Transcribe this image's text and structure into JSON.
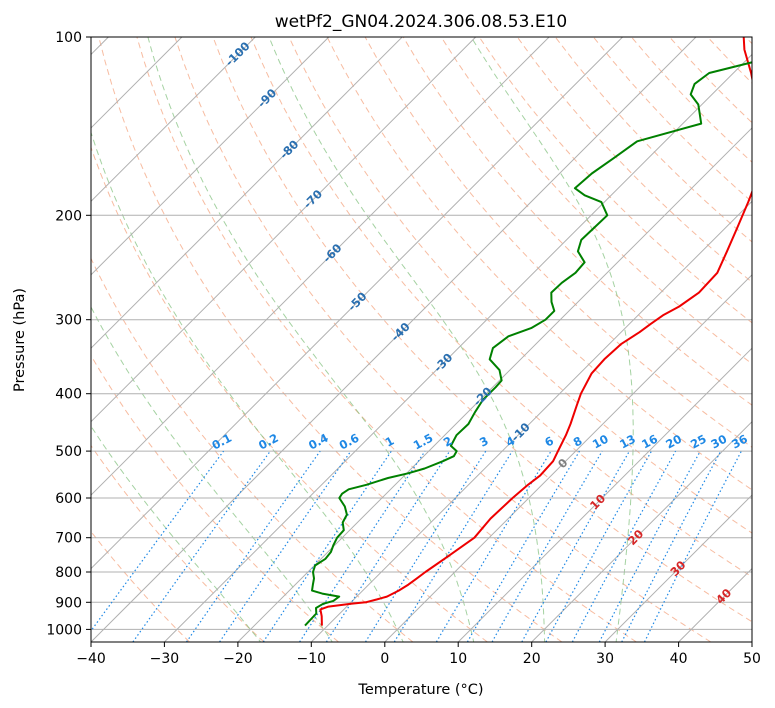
{
  "chart_data": {
    "type": "line",
    "subtype": "skew-t log-p diagram",
    "title": "wetPf2_GN04.2024.306.08.53.E10",
    "xlabel": "Temperature (°C)",
    "ylabel": "Pressure (hPa)",
    "xlim": [
      -40,
      50
    ],
    "ylim": [
      1050,
      100
    ],
    "y_scale": "log",
    "grid": true,
    "x_ticks": [
      -40,
      -30,
      -20,
      -10,
      0,
      10,
      20,
      30,
      40,
      50
    ],
    "y_ticks": [
      1000,
      900,
      800,
      700,
      600,
      500,
      400,
      300,
      200,
      100
    ],
    "isotherm_labels": [
      "-100",
      "-90",
      "-80",
      "-70",
      "-60",
      "-50",
      "-40",
      "-30",
      "-20",
      "-10",
      "0",
      "10",
      "20",
      "30",
      "40"
    ],
    "mixing_ratio_labels": [
      "0.1",
      "0.2",
      "0.4",
      "0.6",
      "1",
      "1.5",
      "2",
      "3",
      "4",
      "6",
      "8",
      "10",
      "13",
      "16",
      "20",
      "25",
      "30",
      "36"
    ],
    "colors": {
      "temperature": "#ee0000",
      "dewpoint": "#008000",
      "isotherm_label_cold": "#2a6fb0",
      "isotherm_label_warm": "#d62728",
      "isotherm_label_zero": "#808080",
      "mixing_ratio": "#1e88e5",
      "dry_adiabat": "#f4a582",
      "moist_adiabat": "#7fbf7b",
      "grid": "#b0b0b0"
    },
    "series": [
      {
        "p": [
          985,
          950,
          925,
          915,
          905,
          900,
          890,
          880,
          860,
          840,
          820,
          800,
          780,
          750,
          700,
          650,
          600,
          570,
          550,
          520,
          500,
          470,
          450,
          420,
          400,
          370,
          350,
          330,
          315,
          305,
          295,
          285,
          270,
          250,
          230,
          210,
          190,
          170,
          150,
          135,
          125,
          115,
          105,
          100
        ],
        "t": [
          -10.8,
          -12.1,
          -13.2,
          -12.5,
          -9.8,
          -8.0,
          -6.9,
          -5.9,
          -5.1,
          -4.6,
          -4.3,
          -4.0,
          -3.6,
          -3.0,
          -2.0,
          -2.4,
          -2.2,
          -1.9,
          -1.5,
          -1.7,
          -2.4,
          -3.5,
          -4.4,
          -6.0,
          -7.1,
          -8.4,
          -8.6,
          -8.4,
          -7.5,
          -7.1,
          -6.6,
          -5.6,
          -4.8,
          -5.0,
          -6.6,
          -8.4,
          -10.4,
          -12.8,
          -16.8,
          -20.6,
          -24.1,
          -27.6,
          -31.7,
          -33.5
        ]
      },
      {
        "p": [
          985,
          940,
          920,
          905,
          895,
          880,
          870,
          860,
          840,
          820,
          800,
          780,
          760,
          740,
          720,
          700,
          680,
          660,
          640,
          620,
          600,
          590,
          580,
          570,
          555,
          545,
          535,
          520,
          510,
          500,
          490,
          470,
          450,
          430,
          410,
          400,
          390,
          380,
          365,
          350,
          335,
          320,
          310,
          300,
          290,
          280,
          270,
          260,
          250,
          240,
          230,
          220,
          210,
          200,
          190,
          185,
          180,
          170,
          160,
          150,
          140,
          130,
          125,
          120,
          115,
          110,
          105,
          100
        ],
        "t": [
          -13.1,
          -13.2,
          -14.0,
          -13.6,
          -12.6,
          -12.4,
          -15.1,
          -16.9,
          -17.6,
          -18.3,
          -19.3,
          -19.9,
          -19.4,
          -19.6,
          -20.2,
          -20.7,
          -20.8,
          -22.0,
          -22.5,
          -23.9,
          -25.8,
          -26.0,
          -25.7,
          -23.9,
          -21.9,
          -19.8,
          -18.2,
          -16.7,
          -15.9,
          -16.2,
          -17.7,
          -18.4,
          -18.3,
          -19.0,
          -19.6,
          -19.6,
          -19.6,
          -19.7,
          -21.4,
          -24.2,
          -25.3,
          -24.8,
          -22.8,
          -22.0,
          -22.0,
          -23.6,
          -24.9,
          -24.8,
          -24.3,
          -24.5,
          -26.9,
          -28.0,
          -27.9,
          -27.8,
          -30.4,
          -33.6,
          -35.9,
          -35.6,
          -34.7,
          -33.8,
          -27.5,
          -30.5,
          -32.9,
          -33.8,
          -33.3,
          -28.6,
          -22.3,
          -18.9
        ]
      }
    ]
  }
}
